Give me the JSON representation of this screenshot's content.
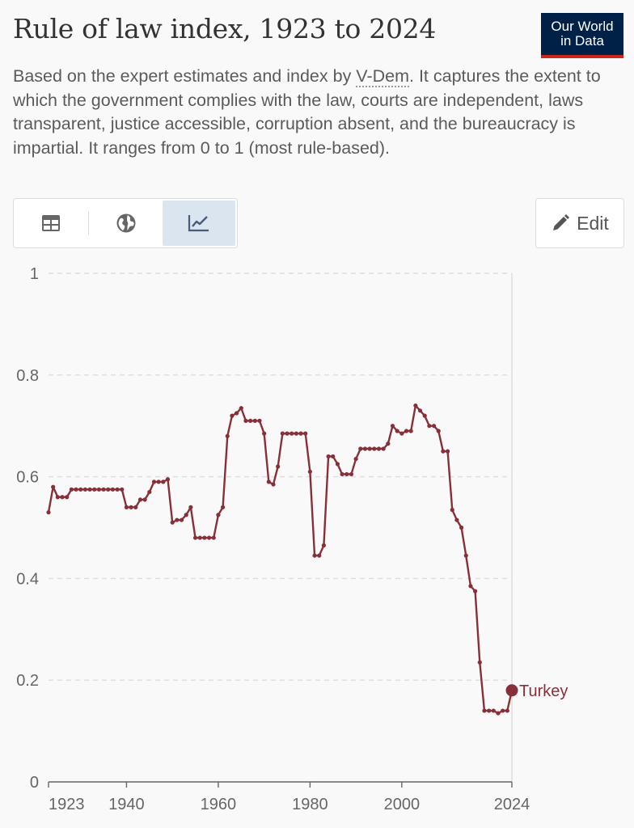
{
  "header": {
    "title": "Rule of law index, 1923 to 2024",
    "logo_line1": "Our World",
    "logo_line2": "in Data",
    "subtitle_before": "Based on the expert estimates and index by ",
    "subtitle_link": "V-Dem",
    "subtitle_after": ". It captures the extent to which the government complies with the law, courts are independent, laws transparent, justice accessible, corruption absent, and the bureaucracy is impartial. It ranges from 0 to 1 (most rule-based)."
  },
  "toolbar": {
    "table_icon": "table-icon",
    "map_icon": "globe-icon",
    "chart_icon": "line-chart-icon",
    "edit_icon": "pencil-icon",
    "edit_label": "Edit"
  },
  "colors": {
    "series": "#883039",
    "grid": "#dddddd",
    "axis": "#666666"
  },
  "chart_data": {
    "type": "line",
    "title": "Rule of law index, 1923 to 2024",
    "ylim": [
      0,
      1
    ],
    "xlim": [
      1923,
      2024
    ],
    "y_ticks": [
      0,
      0.2,
      0.4,
      0.6,
      0.8,
      1
    ],
    "y_tick_labels": [
      "0",
      "0.2",
      "0.4",
      "0.6",
      "0.8",
      "1"
    ],
    "x_ticks": [
      1923,
      1940,
      1960,
      1980,
      2000,
      2024
    ],
    "x_tick_labels": [
      "1923",
      "1940",
      "1960",
      "1980",
      "2000",
      "2024"
    ],
    "grid": "horizontal dashed",
    "series": [
      {
        "name": "Turkey",
        "label_placement": "end of line",
        "x": [
          1923,
          1924,
          1925,
          1926,
          1927,
          1928,
          1929,
          1930,
          1931,
          1932,
          1933,
          1934,
          1935,
          1936,
          1937,
          1938,
          1939,
          1940,
          1941,
          1942,
          1943,
          1944,
          1945,
          1946,
          1947,
          1948,
          1949,
          1950,
          1951,
          1952,
          1953,
          1954,
          1955,
          1956,
          1957,
          1958,
          1959,
          1960,
          1961,
          1962,
          1963,
          1964,
          1965,
          1966,
          1967,
          1968,
          1969,
          1970,
          1971,
          1972,
          1973,
          1974,
          1975,
          1976,
          1977,
          1978,
          1979,
          1980,
          1981,
          1982,
          1983,
          1984,
          1985,
          1986,
          1987,
          1988,
          1989,
          1990,
          1991,
          1992,
          1993,
          1994,
          1995,
          1996,
          1997,
          1998,
          1999,
          2000,
          2001,
          2002,
          2003,
          2004,
          2005,
          2006,
          2007,
          2008,
          2009,
          2010,
          2011,
          2012,
          2013,
          2014,
          2015,
          2016,
          2017,
          2018,
          2019,
          2020,
          2021,
          2022,
          2023,
          2024
        ],
        "values": [
          0.53,
          0.58,
          0.56,
          0.56,
          0.56,
          0.575,
          0.575,
          0.575,
          0.575,
          0.575,
          0.575,
          0.575,
          0.575,
          0.575,
          0.575,
          0.575,
          0.575,
          0.54,
          0.54,
          0.54,
          0.555,
          0.555,
          0.57,
          0.59,
          0.59,
          0.59,
          0.595,
          0.51,
          0.515,
          0.515,
          0.525,
          0.54,
          0.48,
          0.48,
          0.48,
          0.48,
          0.48,
          0.525,
          0.54,
          0.68,
          0.72,
          0.725,
          0.735,
          0.71,
          0.71,
          0.71,
          0.71,
          0.685,
          0.59,
          0.585,
          0.62,
          0.685,
          0.685,
          0.685,
          0.685,
          0.685,
          0.685,
          0.61,
          0.445,
          0.445,
          0.465,
          0.64,
          0.64,
          0.625,
          0.605,
          0.605,
          0.605,
          0.635,
          0.655,
          0.655,
          0.655,
          0.655,
          0.655,
          0.655,
          0.665,
          0.7,
          0.69,
          0.685,
          0.69,
          0.69,
          0.74,
          0.73,
          0.72,
          0.7,
          0.7,
          0.69,
          0.65,
          0.65,
          0.535,
          0.515,
          0.5,
          0.445,
          0.385,
          0.375,
          0.235,
          0.14,
          0.14,
          0.14,
          0.135,
          0.14,
          0.14,
          0.18
        ]
      }
    ]
  }
}
